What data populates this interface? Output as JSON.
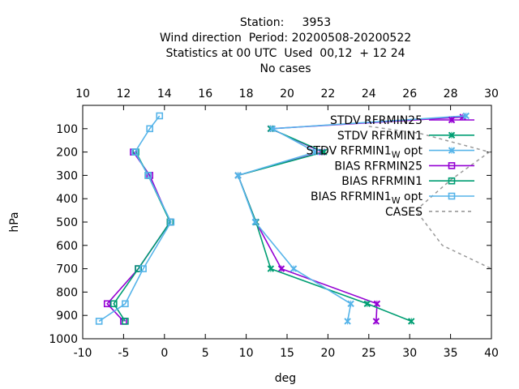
{
  "chart_data": {
    "type": "line",
    "title_lines": [
      "Station:     3953",
      "Wind direction  Period: 20200508-20200522",
      "Statistics at 00 UTC  Used  00,12  + 12 24",
      "No cases"
    ],
    "xlabel": "deg",
    "ylabel": "hPa",
    "x_bottom": {
      "range": [
        -10,
        40
      ],
      "ticks": [
        "-10",
        "-5",
        "0",
        "5",
        "10",
        "15",
        "20",
        "25",
        "30",
        "35",
        "40"
      ]
    },
    "x_top": {
      "range": [
        10,
        30
      ],
      "ticks": [
        "10",
        "12",
        "14",
        "16",
        "18",
        "20",
        "22",
        "24",
        "26",
        "28",
        "30"
      ]
    },
    "y": {
      "range": [
        1000,
        0
      ],
      "ticks": [
        "100",
        "200",
        "300",
        "400",
        "500",
        "600",
        "700",
        "800",
        "900",
        "1000"
      ]
    },
    "legend_position": "top-right",
    "series": [
      {
        "name": "STDV RFRMIN25",
        "color": "#9400d3",
        "marker": "x",
        "points": [
          [
            36.5,
            50
          ],
          [
            13.0,
            100
          ],
          [
            19.3,
            200
          ],
          [
            9.0,
            300
          ],
          [
            11.2,
            500
          ],
          [
            14.3,
            700
          ],
          [
            26.0,
            850
          ],
          [
            25.9,
            925
          ]
        ]
      },
      {
        "name": "STDV RFRMIN1",
        "color": "#009e73",
        "marker": "x",
        "points": [
          [
            13.0,
            100
          ],
          [
            19.5,
            200
          ],
          [
            9.0,
            300
          ],
          [
            11.2,
            500
          ],
          [
            13.0,
            700
          ],
          [
            24.8,
            850
          ],
          [
            30.2,
            925
          ]
        ]
      },
      {
        "name": "STDV RFRMIN1_W opt",
        "name_main": "STDV RFRMIN1",
        "name_sub": "W",
        "name_tail": " opt",
        "color": "#56b4e9",
        "marker": "x",
        "points": [
          [
            36.9,
            45
          ],
          [
            13.2,
            100
          ],
          [
            18.5,
            200
          ],
          [
            9.0,
            300
          ],
          [
            11.1,
            500
          ],
          [
            15.8,
            700
          ],
          [
            22.8,
            850
          ],
          [
            22.4,
            925
          ]
        ]
      },
      {
        "name": "BIAS RFRMIN25",
        "color": "#9400d3",
        "marker": "square",
        "points": [
          [
            -3.8,
            200
          ],
          [
            -1.8,
            300
          ],
          [
            0.7,
            500
          ],
          [
            -3.2,
            700
          ],
          [
            -7.0,
            850
          ],
          [
            -5.0,
            925
          ]
        ]
      },
      {
        "name": "BIAS RFRMIN1",
        "color": "#009e73",
        "marker": "square",
        "points": [
          [
            -3.5,
            200
          ],
          [
            -2.0,
            300
          ],
          [
            0.7,
            500
          ],
          [
            -3.2,
            700
          ],
          [
            -6.2,
            850
          ],
          [
            -4.8,
            925
          ]
        ]
      },
      {
        "name": "BIAS RFRMIN1_W opt",
        "name_main": "BIAS RFRMIN1",
        "name_sub": "W",
        "name_tail": " opt",
        "color": "#56b4e9",
        "marker": "square",
        "points": [
          [
            -0.6,
            45
          ],
          [
            -1.8,
            100
          ],
          [
            -3.6,
            200
          ],
          [
            -2.0,
            300
          ],
          [
            0.8,
            500
          ],
          [
            -2.6,
            700
          ],
          [
            -4.8,
            850
          ],
          [
            -8.0,
            925
          ]
        ]
      },
      {
        "name": "CASES",
        "color": "#999999",
        "marker": "none",
        "dashed": true,
        "axis": "top",
        "points": [
          [
            24.0,
            90
          ],
          [
            26.5,
            120
          ],
          [
            29.9,
            200
          ],
          [
            28.0,
            320
          ],
          [
            26.3,
            450
          ],
          [
            27.6,
            600
          ],
          [
            30.0,
            700
          ]
        ]
      }
    ]
  }
}
